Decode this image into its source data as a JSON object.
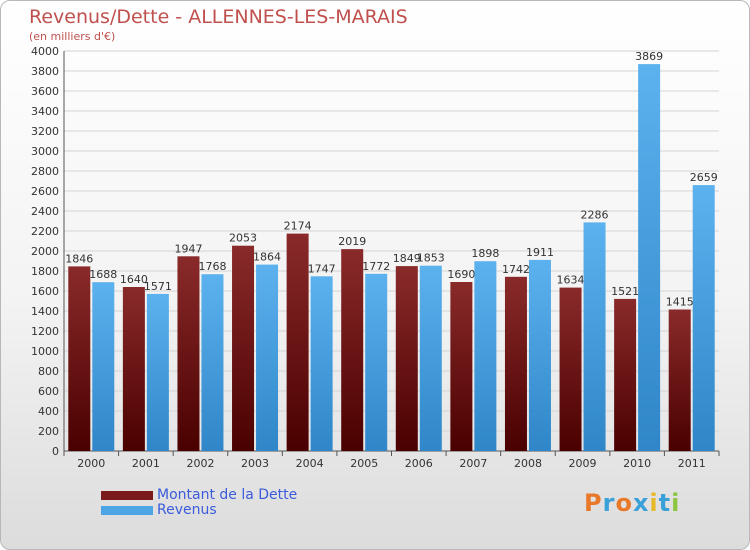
{
  "chart_data": {
    "type": "bar",
    "title": "Revenus/Dette - ALLENNES-LES-MARAIS",
    "subtitle": "(en milliers d'€)",
    "categories": [
      "2000",
      "2001",
      "2002",
      "2003",
      "2004",
      "2005",
      "2006",
      "2007",
      "2008",
      "2009",
      "2010",
      "2011"
    ],
    "series": [
      {
        "name": "Montant de la Dette",
        "color": "#7a1a1a",
        "values": [
          1846,
          1640,
          1947,
          2053,
          2174,
          2019,
          1849,
          1690,
          1742,
          1634,
          1521,
          1415
        ]
      },
      {
        "name": "Revenus",
        "color": "#4ea5e6",
        "values": [
          1688,
          1571,
          1768,
          1864,
          1747,
          1772,
          1853,
          1898,
          1911,
          2286,
          3869,
          2659
        ]
      }
    ],
    "ylim": [
      0,
      4000
    ],
    "ytick_step": 200,
    "grid": true,
    "legend_position": "bottom-left"
  },
  "logo": {
    "text": "Proxiti",
    "colors": [
      "#e8792b",
      "#3aa0d8",
      "#e8792b",
      "#3aa0d8",
      "#e8b82b",
      "#3aa0d8",
      "#8cc63f"
    ]
  }
}
